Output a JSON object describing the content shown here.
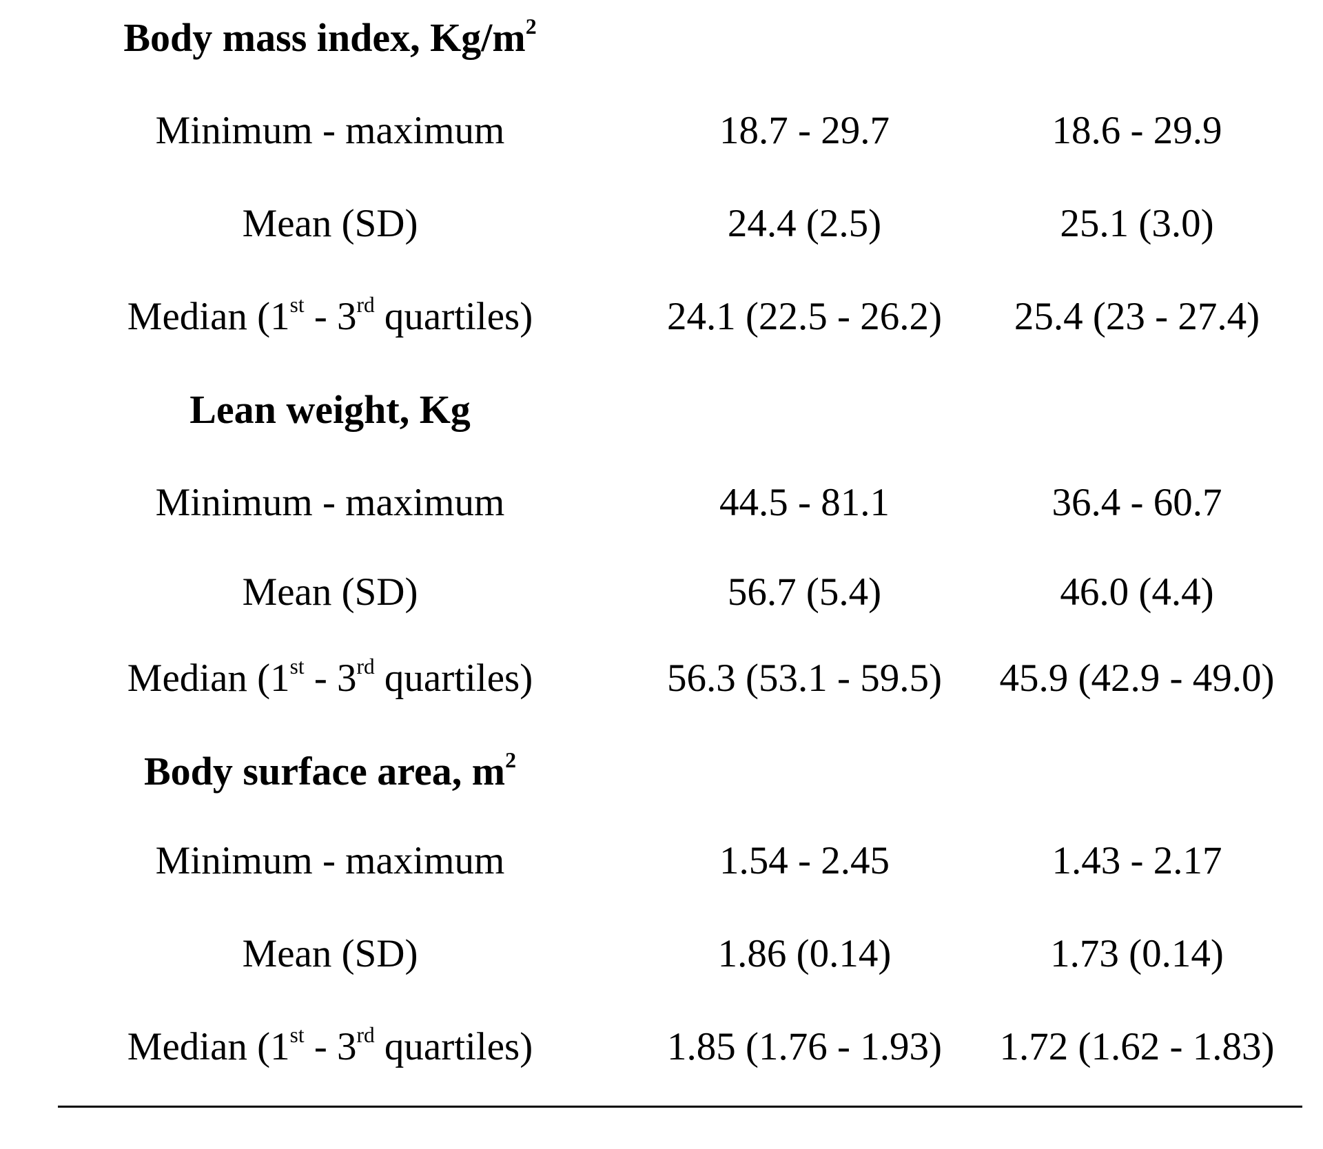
{
  "sections": [
    {
      "title": "Body mass index, Kg/m",
      "title_sup": "2",
      "rows": [
        {
          "label": "Minimum - maximum",
          "col1": "18.7 - 29.7",
          "col2": "18.6 - 29.9"
        },
        {
          "label": "Mean (SD)",
          "col1": "24.4 (2.5)",
          "col2": "25.1 (3.0)"
        },
        {
          "label_pre": "Median (1",
          "label_sup1": "st",
          "label_mid": " - 3",
          "label_sup2": "rd",
          "label_post": " quartiles)",
          "col1": "24.1 (22.5 - 26.2)",
          "col2": "25.4 (23 - 27.4)"
        }
      ]
    },
    {
      "title": "Lean weight, Kg",
      "title_sup": "",
      "rows": [
        {
          "label": "Minimum - maximum",
          "col1": "44.5 - 81.1",
          "col2": "36.4 - 60.7"
        },
        {
          "label": "Mean (SD)",
          "col1": "56.7 (5.4)",
          "col2": "46.0 (4.4)"
        },
        {
          "label_pre": "Median (1",
          "label_sup1": "st",
          "label_mid": " - 3",
          "label_sup2": "rd",
          "label_post": " quartiles)",
          "col1": "56.3 (53.1 - 59.5)",
          "col2": "45.9 (42.9 - 49.0)"
        }
      ]
    },
    {
      "title": "Body surface area, m",
      "title_sup": "2",
      "rows": [
        {
          "label": "Minimum - maximum",
          "col1": "1.54 - 2.45",
          "col2": "1.43 - 2.17"
        },
        {
          "label": "Mean (SD)",
          "col1": "1.86 (0.14)",
          "col2": "1.73 (0.14)"
        },
        {
          "label_pre": "Median (1",
          "label_sup1": "st",
          "label_mid": " - 3",
          "label_sup2": "rd",
          "label_post": " quartiles)",
          "col1": "1.85 (1.76 - 1.93)",
          "col2": "1.72 (1.62 - 1.83)"
        }
      ]
    }
  ]
}
